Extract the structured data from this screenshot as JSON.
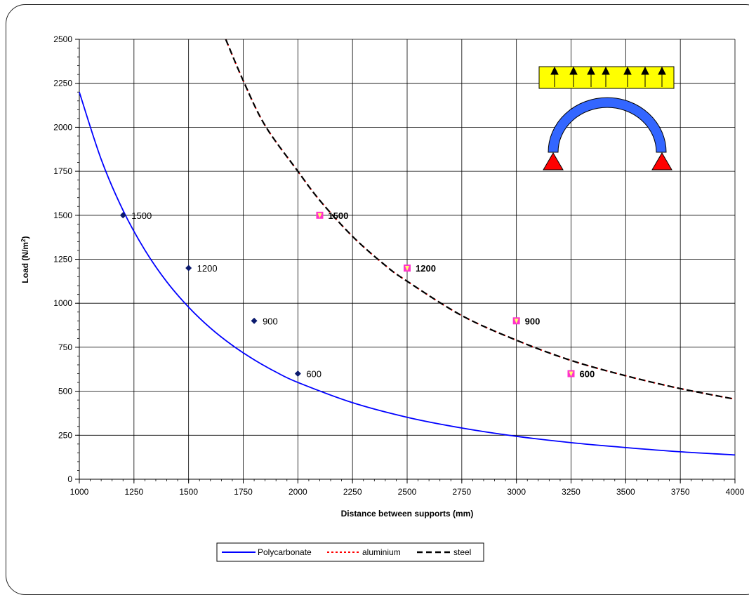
{
  "chart_data": {
    "type": "line",
    "xlabel": "Distance between supports (mm)",
    "ylabel_main": "Load (N/m",
    "ylabel_sup": "2",
    "ylabel_close": ")",
    "xlim": [
      1000,
      4000
    ],
    "ylim": [
      0,
      2500
    ],
    "x_ticks": [
      "1000",
      "1250",
      "1500",
      "1750",
      "2000",
      "2250",
      "2500",
      "2750",
      "3000",
      "3250",
      "3500",
      "3750",
      "4000"
    ],
    "y_ticks": [
      "0",
      "250",
      "500",
      "750",
      "1000",
      "1250",
      "1500",
      "1750",
      "2000",
      "2250",
      "2500"
    ],
    "grid": true,
    "legend_position": "bottom-center",
    "series": [
      {
        "name": "Polycarbonate",
        "color": "#0000ff",
        "style": "solid",
        "x": [
          1000,
          1100,
          1200,
          1300,
          1400,
          1500,
          1600,
          1700,
          1800,
          1900,
          2000,
          2250,
          2500,
          2750,
          3000,
          3250,
          3500,
          3750,
          4000
        ],
        "y": [
          2200,
          1818,
          1528,
          1302,
          1122,
          978,
          859,
          761,
          679,
          609,
          550,
          435,
          352,
          291,
          244,
          208,
          180,
          156,
          138
        ]
      },
      {
        "name": "aluminium",
        "color": "#ff0000",
        "style": "dotted",
        "x": [
          1670,
          1750,
          1850,
          2000,
          2100,
          2250,
          2400,
          2500,
          2750,
          3000,
          3250,
          3500,
          3750,
          4000
        ],
        "y": [
          2500,
          2265,
          2010,
          1750,
          1585,
          1380,
          1215,
          1125,
          930,
          790,
          675,
          588,
          515,
          455
        ]
      },
      {
        "name": "steel",
        "color": "#000000",
        "style": "dashed",
        "x": [
          1670,
          1750,
          1850,
          2000,
          2100,
          2250,
          2400,
          2500,
          2750,
          3000,
          3250,
          3500,
          3750,
          4000
        ],
        "y": [
          2500,
          2265,
          2010,
          1750,
          1585,
          1380,
          1215,
          1125,
          930,
          790,
          675,
          588,
          515,
          455
        ]
      }
    ],
    "markers_polycarbonate": [
      {
        "x": 1200,
        "y": 1500,
        "label": "1500"
      },
      {
        "x": 1500,
        "y": 1200,
        "label": "1200"
      },
      {
        "x": 1800,
        "y": 900,
        "label": "900"
      },
      {
        "x": 2000,
        "y": 600,
        "label": "600"
      }
    ],
    "markers_metal": [
      {
        "x": 2100,
        "y": 1500,
        "label": "1500"
      },
      {
        "x": 2500,
        "y": 1200,
        "label": "1200"
      },
      {
        "x": 3000,
        "y": 900,
        "label": "900"
      },
      {
        "x": 3250,
        "y": 600,
        "label": "600"
      }
    ]
  },
  "colors": {
    "marker_navy": "#0b1a6e",
    "marker_pink": "#ff33cc",
    "marker_yellow": "#ffff66",
    "diagram_yellow": "#ffff00",
    "arch_blue": "#3366ff",
    "support_red": "#ff0000"
  }
}
